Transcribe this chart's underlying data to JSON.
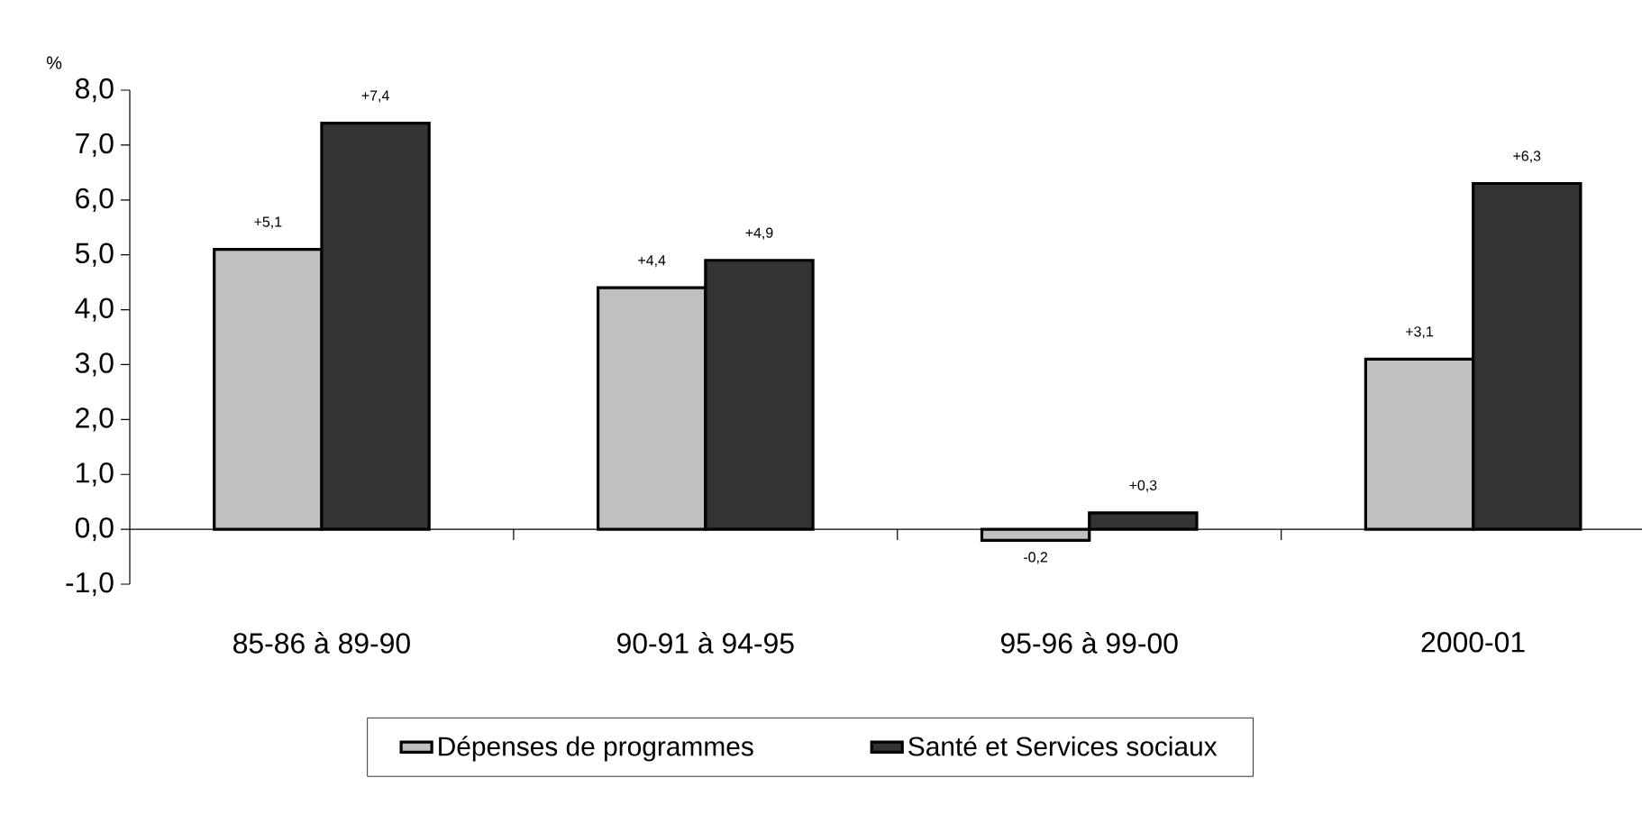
{
  "chart_data": {
    "type": "bar",
    "ylabel": "%",
    "categories": [
      "85-86 à 89-90",
      "90-91 à 94-95",
      "95-96 à 99-00",
      "2000-01"
    ],
    "series": [
      {
        "name": "Dépenses de programmes",
        "color": "#c0c0c0",
        "values": [
          5.1,
          4.4,
          -0.2,
          3.1
        ],
        "value_labels": [
          "+5,1",
          "+4,4",
          "-0,2",
          "+3,1"
        ]
      },
      {
        "name": "Santé et Services sociaux",
        "color": "#333333",
        "values": [
          7.4,
          4.9,
          0.3,
          6.3
        ],
        "value_labels": [
          "+7,4",
          "+4,9",
          "+0,3",
          "+6,3"
        ]
      }
    ],
    "ylim": [
      -1,
      8
    ],
    "yticks": [
      {
        "value": -1,
        "label": "-1,0"
      },
      {
        "value": 0,
        "label": "0,0"
      },
      {
        "value": 1,
        "label": "1,0"
      },
      {
        "value": 2,
        "label": "2,0"
      },
      {
        "value": 3,
        "label": "3,0"
      },
      {
        "value": 4,
        "label": "4,0"
      },
      {
        "value": 5,
        "label": "5,0"
      },
      {
        "value": 6,
        "label": "6,0"
      },
      {
        "value": 7,
        "label": "7,0"
      },
      {
        "value": 8,
        "label": "8,0"
      }
    ],
    "legend": "bottom"
  }
}
